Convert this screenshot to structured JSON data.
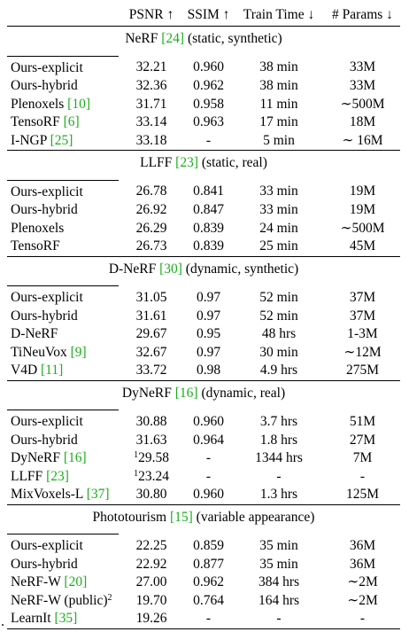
{
  "header": {
    "columns": [
      "",
      "PSNR ↑",
      "SSIM ↑",
      "Train Time ↓",
      "# Params ↓"
    ]
  },
  "sections": [
    {
      "title_pre": "NeRF ",
      "title_cite": "[24]",
      "title_post": " (static, synthetic)",
      "rows": [
        {
          "method": "Ours-explicit",
          "cite": "",
          "sup": "",
          "psnr_sup": "",
          "psnr": "32.21",
          "ssim": "0.960",
          "time": "38 min",
          "params": "33M"
        },
        {
          "method": "Ours-hybrid",
          "cite": "",
          "sup": "",
          "psnr_sup": "",
          "psnr": "32.36",
          "ssim": "0.962",
          "time": "38 min",
          "params": "33M"
        },
        {
          "method": "Plenoxels ",
          "cite": "[10]",
          "sup": "",
          "psnr_sup": "",
          "psnr": "31.71",
          "ssim": "0.958",
          "time": "11 min",
          "params": "∼500M"
        },
        {
          "method": "TensoRF ",
          "cite": "[6]",
          "sup": "",
          "psnr_sup": "",
          "psnr": "33.14",
          "ssim": "0.963",
          "time": "17 min",
          "params": "18M"
        },
        {
          "method": "I-NGP ",
          "cite": "[25]",
          "sup": "",
          "psnr_sup": "",
          "psnr": "33.18",
          "ssim": "-",
          "time": "5 min",
          "params": "∼ 16M"
        }
      ]
    },
    {
      "title_pre": "LLFF ",
      "title_cite": "[23]",
      "title_post": " (static, real)",
      "rows": [
        {
          "method": "Ours-explicit",
          "cite": "",
          "sup": "",
          "psnr_sup": "",
          "psnr": "26.78",
          "ssim": "0.841",
          "time": "33 min",
          "params": "19M"
        },
        {
          "method": "Ours-hybrid",
          "cite": "",
          "sup": "",
          "psnr_sup": "",
          "psnr": "26.92",
          "ssim": "0.847",
          "time": "33 min",
          "params": "19M"
        },
        {
          "method": "Plenoxels",
          "cite": "",
          "sup": "",
          "psnr_sup": "",
          "psnr": "26.29",
          "ssim": "0.839",
          "time": "24 min",
          "params": "∼500M"
        },
        {
          "method": "TensoRF",
          "cite": "",
          "sup": "",
          "psnr_sup": "",
          "psnr": "26.73",
          "ssim": "0.839",
          "time": "25 min",
          "params": "45M"
        }
      ]
    },
    {
      "title_pre": "D-NeRF ",
      "title_cite": "[30]",
      "title_post": " (dynamic, synthetic)",
      "rows": [
        {
          "method": "Ours-explicit",
          "cite": "",
          "sup": "",
          "psnr_sup": "",
          "psnr": "31.05",
          "ssim": "0.97",
          "time": "52 min",
          "params": "37M"
        },
        {
          "method": "Ours-hybrid",
          "cite": "",
          "sup": "",
          "psnr_sup": "",
          "psnr": "31.61",
          "ssim": "0.97",
          "time": "52 min",
          "params": "37M"
        },
        {
          "method": "D-NeRF",
          "cite": "",
          "sup": "",
          "psnr_sup": "",
          "psnr": "29.67",
          "ssim": "0.95",
          "time": "48 hrs",
          "params": "1-3M"
        },
        {
          "method": "TiNeuVox ",
          "cite": "[9]",
          "sup": "",
          "psnr_sup": "",
          "psnr": "32.67",
          "ssim": "0.97",
          "time": "30 min",
          "params": "∼12M"
        },
        {
          "method": "V4D ",
          "cite": "[11]",
          "sup": "",
          "psnr_sup": "",
          "psnr": "33.72",
          "ssim": "0.98",
          "time": "4.9 hrs",
          "params": "275M"
        }
      ]
    },
    {
      "title_pre": "DyNeRF ",
      "title_cite": "[16]",
      "title_post": " (dynamic, real)",
      "rows": [
        {
          "method": "Ours-explicit",
          "cite": "",
          "sup": "",
          "psnr_sup": "",
          "psnr": "30.88",
          "ssim": "0.960",
          "time": "3.7 hrs",
          "params": "51M"
        },
        {
          "method": "Ours-hybrid",
          "cite": "",
          "sup": "",
          "psnr_sup": "",
          "psnr": "31.63",
          "ssim": "0.964",
          "time": "1.8 hrs",
          "params": "27M"
        },
        {
          "method": "DyNeRF ",
          "cite": "[16]",
          "sup": "",
          "psnr_sup": "1",
          "psnr": "29.58",
          "ssim": "-",
          "time": "1344 hrs",
          "params": "7M"
        },
        {
          "method": "LLFF ",
          "cite": "[23]",
          "sup": "",
          "psnr_sup": "1",
          "psnr": "23.24",
          "ssim": "-",
          "time": "-",
          "params": "-"
        },
        {
          "method": "MixVoxels-L ",
          "cite": "[37]",
          "sup": "",
          "psnr_sup": "",
          "psnr": "30.80",
          "ssim": "0.960",
          "time": "1.3 hrs",
          "params": "125M"
        }
      ]
    },
    {
      "title_pre": "Phototourism ",
      "title_cite": "[15]",
      "title_post": " (variable appearance)",
      "rows": [
        {
          "method": "Ours-explicit",
          "cite": "",
          "sup": "",
          "psnr_sup": "",
          "psnr": "22.25",
          "ssim": "0.859",
          "time": "35 min",
          "params": "36M"
        },
        {
          "method": "Ours-hybrid",
          "cite": "",
          "sup": "",
          "psnr_sup": "",
          "psnr": "22.92",
          "ssim": "0.877",
          "time": "35 min",
          "params": "36M"
        },
        {
          "method": "NeRF-W ",
          "cite": "[20]",
          "sup": "",
          "psnr_sup": "",
          "psnr": "27.00",
          "ssim": "0.962",
          "time": "384 hrs",
          "params": "∼2M"
        },
        {
          "method": "NeRF-W (public)",
          "cite": "",
          "sup": "2",
          "psnr_sup": "",
          "psnr": "19.70",
          "ssim": "0.764",
          "time": "164 hrs",
          "params": "∼2M"
        },
        {
          "method": "LearnIt ",
          "cite": "[35]",
          "sup": "",
          "psnr_sup": "",
          "psnr": "19.26",
          "ssim": "-",
          "time": "-",
          "params": "-"
        }
      ]
    }
  ]
}
